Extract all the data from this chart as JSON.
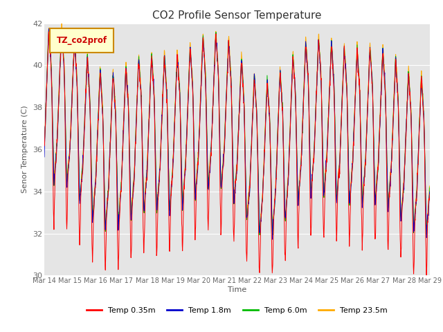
{
  "title": "CO2 Profile Sensor Temperature",
  "ylabel": "Senor Temperature (C)",
  "xlabel": "Time",
  "legend_label": "TZ_co2prof",
  "ylim": [
    30,
    42
  ],
  "yticks": [
    30,
    32,
    34,
    36,
    38,
    40,
    42
  ],
  "series_labels": [
    "Temp 0.35m",
    "Temp 1.8m",
    "Temp 6.0m",
    "Temp 23.5m"
  ],
  "series_colors": [
    "#ff0000",
    "#0000cc",
    "#00bb00",
    "#ffaa00"
  ],
  "plot_bg_color": "#e5e5e5",
  "fig_bg_color": "#ffffff",
  "tick_dates": [
    "Mar 14",
    "Mar 15",
    "Mar 16",
    "Mar 17",
    "Mar 18",
    "Mar 19",
    "Mar 20",
    "Mar 21",
    "Mar 22",
    "Mar 23",
    "Mar 24",
    "Mar 25",
    "Mar 26",
    "Mar 27",
    "Mar 28",
    "Mar 29"
  ],
  "n_days": 15,
  "pts_per_day": 96,
  "seed": 7,
  "title_fontsize": 11,
  "axis_label_fontsize": 8,
  "tick_fontsize": 7,
  "legend_fontsize": 8,
  "line_width": 0.7,
  "figsize": [
    6.4,
    4.8
  ],
  "dpi": 100
}
